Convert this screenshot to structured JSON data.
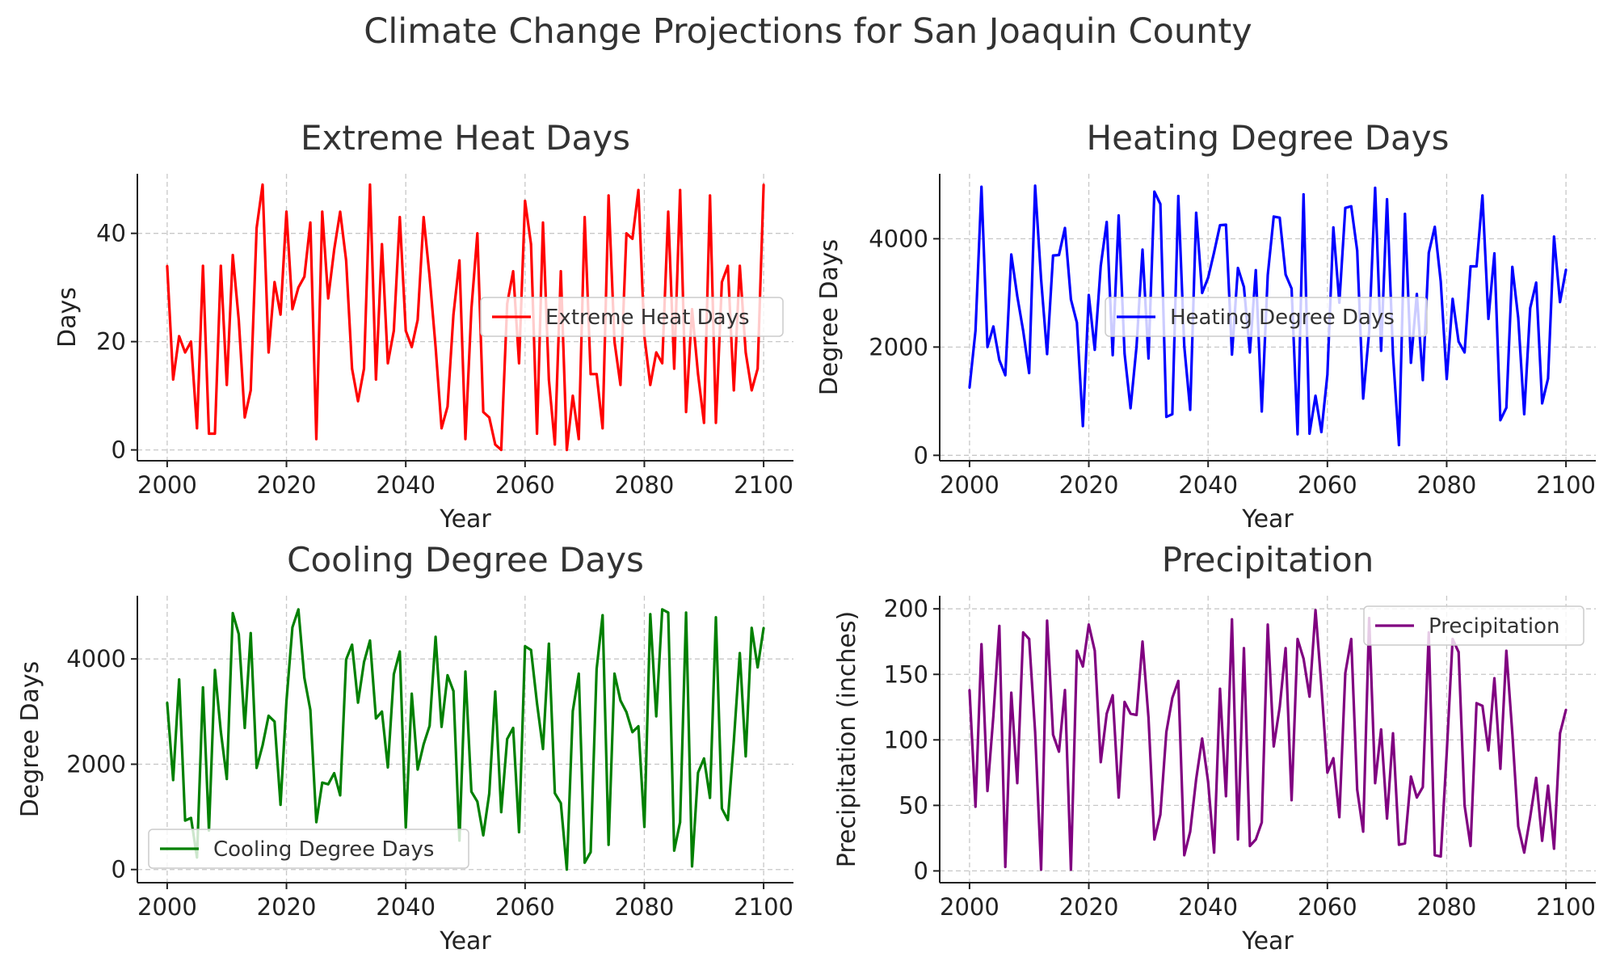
{
  "figure": {
    "title": "Climate Change Projections for San Joaquin County"
  },
  "chart_data": [
    {
      "type": "line",
      "title": "Extreme Heat Days",
      "xlabel": "Year",
      "ylabel": "Days",
      "xlim": [
        1995,
        2105
      ],
      "ylim": [
        -2,
        51
      ],
      "xticks": [
        2000,
        2020,
        2040,
        2060,
        2080,
        2100
      ],
      "yticks": [
        0,
        20,
        40
      ],
      "grid": true,
      "legend": "center-right",
      "x_start": 2000,
      "series": [
        {
          "name": "Extreme Heat Days",
          "color": "#ff0000",
          "values": [
            34,
            13,
            21,
            18,
            20,
            4,
            34,
            3,
            3,
            34,
            12,
            36,
            24,
            6,
            11,
            41,
            49,
            18,
            31,
            25,
            44,
            26,
            30,
            32,
            42,
            2,
            44,
            28,
            37,
            44,
            35,
            15,
            9,
            15,
            49,
            13,
            38,
            16,
            22,
            43,
            22,
            19,
            24,
            43,
            32,
            19,
            4,
            8,
            25,
            35,
            2,
            26,
            40,
            7,
            6,
            1,
            0,
            27,
            33,
            16,
            46,
            38,
            3,
            42,
            13,
            1,
            33,
            0,
            10,
            2,
            43,
            14,
            14,
            4,
            47,
            20,
            12,
            40,
            39,
            48,
            21,
            12,
            18,
            16,
            44,
            15,
            48,
            7,
            26,
            14,
            5,
            47,
            5,
            31,
            34,
            11,
            34,
            18,
            11,
            15,
            49
          ]
        }
      ]
    },
    {
      "type": "line",
      "title": "Heating Degree Days",
      "xlabel": "Year",
      "ylabel": "Degree Days",
      "xlim": [
        1995,
        2105
      ],
      "ylim": [
        -100,
        5200
      ],
      "xticks": [
        2000,
        2020,
        2040,
        2060,
        2080,
        2100
      ],
      "yticks": [
        0,
        2000,
        4000
      ],
      "grid": true,
      "legend": "center-right",
      "x_start": 2000,
      "series": [
        {
          "name": "Heating Degree Days",
          "color": "#0000ff",
          "values": [
            1250,
            2300,
            4960,
            2000,
            2380,
            1760,
            1480,
            3710,
            2940,
            2300,
            1520,
            4980,
            3250,
            1870,
            3690,
            3700,
            4200,
            2880,
            2450,
            540,
            2960,
            1950,
            3500,
            4310,
            1850,
            4430,
            1880,
            870,
            2010,
            3800,
            1790,
            4870,
            4640,
            710,
            760,
            4790,
            2010,
            840,
            4480,
            3000,
            3280,
            3750,
            4250,
            4260,
            1860,
            3460,
            3110,
            1900,
            3420,
            810,
            3330,
            4410,
            4390,
            3340,
            3080,
            390,
            4820,
            400,
            1100,
            430,
            1490,
            4210,
            2820,
            4570,
            4600,
            3780,
            1050,
            2290,
            4940,
            1930,
            4730,
            1860,
            190,
            4460,
            1710,
            2980,
            1390,
            3740,
            4220,
            3210,
            1410,
            2890,
            2100,
            1900,
            3490,
            3490,
            4800,
            2520,
            3730,
            650,
            880,
            3480,
            2540,
            760,
            2720,
            3190,
            960,
            1420,
            4040,
            2830,
            3430
          ]
        }
      ]
    },
    {
      "type": "line",
      "title": "Cooling Degree Days",
      "xlabel": "Year",
      "ylabel": "Degree Days",
      "xlim": [
        1995,
        2105
      ],
      "ylim": [
        -250,
        5200
      ],
      "xticks": [
        2000,
        2020,
        2040,
        2060,
        2080,
        2100
      ],
      "yticks": [
        0,
        2000,
        4000
      ],
      "grid": true,
      "legend": "lower-left",
      "x_start": 2000,
      "series": [
        {
          "name": "Cooling Degree Days",
          "color": "#008000",
          "values": [
            3170,
            1700,
            3610,
            930,
            980,
            230,
            3460,
            740,
            3790,
            2620,
            1720,
            4870,
            4470,
            2690,
            4490,
            1930,
            2360,
            2920,
            2810,
            1230,
            3190,
            4600,
            4940,
            3640,
            3030,
            900,
            1650,
            1620,
            1830,
            1410,
            3990,
            4270,
            3170,
            3940,
            4350,
            2870,
            3000,
            1940,
            3710,
            4140,
            800,
            3340,
            1900,
            2380,
            2730,
            4420,
            2710,
            3690,
            3390,
            550,
            3760,
            1480,
            1290,
            650,
            1440,
            3380,
            1090,
            2480,
            2690,
            710,
            4240,
            4170,
            3160,
            2290,
            4290,
            1450,
            1260,
            0,
            3010,
            3720,
            130,
            330,
            3810,
            4830,
            470,
            3720,
            3210,
            2990,
            2610,
            2720,
            810,
            4850,
            2910,
            4940,
            4880,
            360,
            900,
            4880,
            60,
            1840,
            2110,
            1360,
            4790,
            1160,
            940,
            2440,
            4110,
            2150,
            4590,
            3840,
            4590
          ]
        }
      ]
    },
    {
      "type": "line",
      "title": "Precipitation",
      "xlabel": "Year",
      "ylabel": "Precipitation (inches)",
      "xlim": [
        1995,
        2105
      ],
      "ylim": [
        -9,
        210
      ],
      "xticks": [
        2000,
        2020,
        2040,
        2060,
        2080,
        2100
      ],
      "yticks": [
        0,
        50,
        100,
        150,
        200
      ],
      "grid": true,
      "legend": "top-right",
      "x_start": 2000,
      "series": [
        {
          "name": "Precipitation",
          "color": "#800080",
          "values": [
            138,
            49,
            173,
            61,
            118,
            187,
            3,
            136,
            67,
            182,
            177,
            106,
            1,
            191,
            104,
            91,
            138,
            1,
            168,
            156,
            188,
            168,
            83,
            120,
            134,
            56,
            129,
            120,
            119,
            175,
            117,
            24,
            43,
            106,
            132,
            145,
            12,
            30,
            70,
            101,
            68,
            14,
            139,
            57,
            192,
            24,
            170,
            19,
            24,
            37,
            188,
            95,
            125,
            170,
            54,
            177,
            162,
            133,
            199,
            141,
            75,
            86,
            41,
            151,
            177,
            62,
            30,
            193,
            67,
            108,
            40,
            105,
            20,
            21,
            72,
            56,
            64,
            182,
            12,
            11,
            90,
            177,
            167,
            50,
            19,
            128,
            126,
            92,
            147,
            78,
            168,
            105,
            34,
            14,
            41,
            71,
            23,
            65,
            17,
            105,
            123
          ]
        }
      ]
    }
  ]
}
